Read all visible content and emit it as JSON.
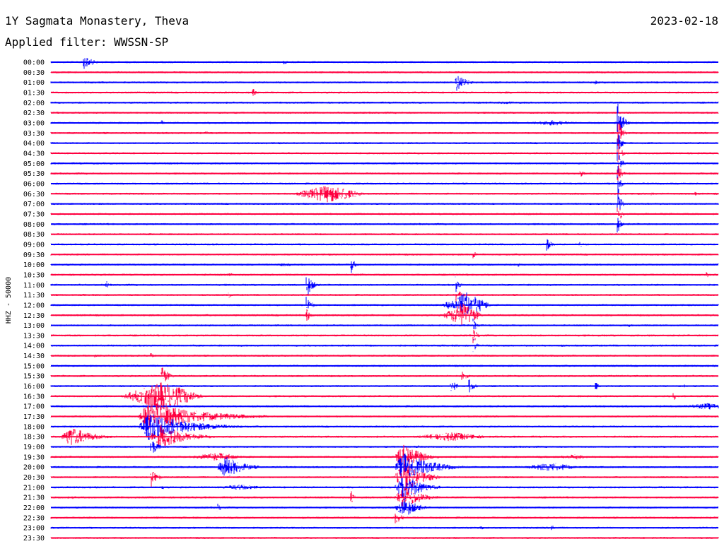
{
  "header": {
    "station_title": "1Y Sagmata Monastery, Theva",
    "date": "2023-02-18",
    "filter_label": "Applied filter: WWSSN-SP"
  },
  "chart_data": {
    "type": "line",
    "ylabel": "HHZ - 50000",
    "colors": [
      "#0000ff",
      "#ff0040"
    ],
    "rows": [
      "00:00",
      "00:30",
      "01:00",
      "01:30",
      "02:00",
      "02:30",
      "03:00",
      "03:30",
      "04:00",
      "04:30",
      "05:00",
      "05:30",
      "06:00",
      "06:30",
      "07:00",
      "07:30",
      "08:00",
      "08:30",
      "09:00",
      "09:30",
      "10:00",
      "10:30",
      "11:00",
      "11:30",
      "12:00",
      "12:30",
      "13:00",
      "13:30",
      "14:00",
      "14:30",
      "15:00",
      "15:30",
      "16:00",
      "16:30",
      "17:00",
      "17:30",
      "18:00",
      "18:30",
      "19:00",
      "19:30",
      "20:00",
      "20:30",
      "21:00",
      "21:30",
      "22:00",
      "22:30",
      "23:00",
      "23:30"
    ],
    "row_minutes": 30,
    "events": [
      {
        "row": 0,
        "minute": 1.5,
        "amp": 1.2,
        "dur": 1.5,
        "type": "spike"
      },
      {
        "row": 0,
        "minute": 10.5,
        "amp": 0.4,
        "dur": 0.8,
        "type": "spike"
      },
      {
        "row": 0,
        "minute": 15,
        "amp": 0.25,
        "dur": 0.5,
        "type": "spike"
      },
      {
        "row": 1,
        "minute": 8,
        "amp": 0.15,
        "dur": 2,
        "type": "burst"
      },
      {
        "row": 1,
        "minute": 11,
        "amp": 0.2,
        "dur": 1.5,
        "type": "burst"
      },
      {
        "row": 2,
        "minute": 18.2,
        "amp": 1.8,
        "dur": 1.5,
        "type": "spike"
      },
      {
        "row": 2,
        "minute": 24.5,
        "amp": 0.5,
        "dur": 0.8,
        "type": "spike"
      },
      {
        "row": 2,
        "minute": 7.6,
        "amp": 0.2,
        "dur": 0.6,
        "type": "spike"
      },
      {
        "row": 3,
        "minute": 9.1,
        "amp": 0.7,
        "dur": 0.5,
        "type": "spike"
      },
      {
        "row": 3,
        "minute": 20.5,
        "amp": 0.2,
        "dur": 3,
        "type": "burst"
      },
      {
        "row": 4,
        "minute": 20.5,
        "amp": 0.25,
        "dur": 3,
        "type": "burst"
      },
      {
        "row": 4,
        "minute": 17,
        "amp": 0.1,
        "dur": 4,
        "type": "burst"
      },
      {
        "row": 6,
        "minute": 5,
        "amp": 0.5,
        "dur": 0.7,
        "type": "spike"
      },
      {
        "row": 6,
        "minute": 22.5,
        "amp": 0.5,
        "dur": 1.5,
        "type": "burst"
      },
      {
        "row": 6,
        "minute": 25.5,
        "amp": 3.5,
        "dur": 0.8,
        "type": "spike"
      },
      {
        "row": 7,
        "minute": 7,
        "amp": 0.35,
        "dur": 0.4,
        "type": "spike"
      },
      {
        "row": 7,
        "minute": 25.5,
        "amp": 3,
        "dur": 0.6,
        "type": "spike"
      },
      {
        "row": 8,
        "minute": 25.5,
        "amp": 2.8,
        "dur": 0.5,
        "type": "spike"
      },
      {
        "row": 9,
        "minute": 25.5,
        "amp": 2.6,
        "dur": 0.5,
        "type": "spike"
      },
      {
        "row": 9,
        "minute": 23.5,
        "amp": 0.2,
        "dur": 2,
        "type": "burst"
      },
      {
        "row": 10,
        "minute": 25.5,
        "amp": 2.6,
        "dur": 0.5,
        "type": "spike"
      },
      {
        "row": 11,
        "minute": 25.5,
        "amp": 2.6,
        "dur": 0.5,
        "type": "spike"
      },
      {
        "row": 11,
        "minute": 23.8,
        "amp": 0.8,
        "dur": 0.6,
        "type": "spike"
      },
      {
        "row": 12,
        "minute": 25.5,
        "amp": 2.6,
        "dur": 0.5,
        "type": "spike"
      },
      {
        "row": 13,
        "minute": 12.5,
        "amp": 1.6,
        "dur": 1.8,
        "type": "burst"
      },
      {
        "row": 13,
        "minute": 27,
        "amp": 0.4,
        "dur": 0.5,
        "type": "spike"
      },
      {
        "row": 13,
        "minute": 29,
        "amp": 0.35,
        "dur": 0.4,
        "type": "spike"
      },
      {
        "row": 14,
        "minute": 25.5,
        "amp": 2.6,
        "dur": 0.5,
        "type": "spike"
      },
      {
        "row": 15,
        "minute": 25.5,
        "amp": 2.2,
        "dur": 0.5,
        "type": "spike"
      },
      {
        "row": 16,
        "minute": 25.5,
        "amp": 1.5,
        "dur": 0.5,
        "type": "spike"
      },
      {
        "row": 18,
        "minute": 22.3,
        "amp": 1.2,
        "dur": 0.8,
        "type": "spike"
      },
      {
        "row": 18,
        "minute": 23.8,
        "amp": 0.7,
        "dur": 0.6,
        "type": "spike"
      },
      {
        "row": 19,
        "minute": 19,
        "amp": 0.8,
        "dur": 0.5,
        "type": "spike"
      },
      {
        "row": 20,
        "minute": 10.5,
        "amp": 0.3,
        "dur": 1,
        "type": "burst"
      },
      {
        "row": 20,
        "minute": 13.5,
        "amp": 1.5,
        "dur": 0.6,
        "type": "spike"
      },
      {
        "row": 20,
        "minute": 21,
        "amp": 0.4,
        "dur": 0.6,
        "type": "spike"
      },
      {
        "row": 21,
        "minute": 8,
        "amp": 0.6,
        "dur": 0.6,
        "type": "spike"
      },
      {
        "row": 21,
        "minute": 14,
        "amp": 0.2,
        "dur": 3,
        "type": "burst"
      },
      {
        "row": 21,
        "minute": 29.5,
        "amp": 0.6,
        "dur": 0.5,
        "type": "spike"
      },
      {
        "row": 22,
        "minute": 2.5,
        "amp": 0.7,
        "dur": 0.5,
        "type": "spike"
      },
      {
        "row": 22,
        "minute": 11.5,
        "amp": 2.4,
        "dur": 0.9,
        "type": "spike"
      },
      {
        "row": 22,
        "minute": 18.2,
        "amp": 1.5,
        "dur": 0.6,
        "type": "spike"
      },
      {
        "row": 23,
        "minute": 1.5,
        "amp": 0.2,
        "dur": 1.5,
        "type": "burst"
      },
      {
        "row": 23,
        "minute": 8,
        "amp": 0.6,
        "dur": 0.5,
        "type": "spike"
      },
      {
        "row": 23,
        "minute": 18.2,
        "amp": 1.8,
        "dur": 0.7,
        "type": "spike"
      },
      {
        "row": 24,
        "minute": 11.5,
        "amp": 1.6,
        "dur": 0.8,
        "type": "spike"
      },
      {
        "row": 24,
        "minute": 18.7,
        "amp": 2.3,
        "dur": 1.2,
        "type": "burst"
      },
      {
        "row": 25,
        "minute": 11.5,
        "amp": 1.4,
        "dur": 0.6,
        "type": "spike"
      },
      {
        "row": 25,
        "minute": 18.5,
        "amp": 2.2,
        "dur": 1,
        "type": "burst"
      },
      {
        "row": 26,
        "minute": 19,
        "amp": 1.6,
        "dur": 0.6,
        "type": "spike"
      },
      {
        "row": 26,
        "minute": 26,
        "amp": 0.3,
        "dur": 0.5,
        "type": "spike"
      },
      {
        "row": 27,
        "minute": 19,
        "amp": 1.4,
        "dur": 0.6,
        "type": "spike"
      },
      {
        "row": 28,
        "minute": 19,
        "amp": 1.2,
        "dur": 0.6,
        "type": "spike"
      },
      {
        "row": 28,
        "minute": 23,
        "amp": 0.2,
        "dur": 1,
        "type": "burst"
      },
      {
        "row": 29,
        "minute": 2,
        "amp": 0.3,
        "dur": 0.5,
        "type": "spike"
      },
      {
        "row": 29,
        "minute": 4.5,
        "amp": 0.5,
        "dur": 0.6,
        "type": "spike"
      },
      {
        "row": 31,
        "minute": 5,
        "amp": 2.0,
        "dur": 1,
        "type": "spike"
      },
      {
        "row": 31,
        "minute": 18.5,
        "amp": 1.6,
        "dur": 0.6,
        "type": "spike"
      },
      {
        "row": 32,
        "minute": 18,
        "amp": 1.2,
        "dur": 1,
        "type": "spike"
      },
      {
        "row": 32,
        "minute": 18.8,
        "amp": 1.4,
        "dur": 0.8,
        "type": "spike"
      },
      {
        "row": 32,
        "minute": 24.5,
        "amp": 0.8,
        "dur": 0.6,
        "type": "spike"
      },
      {
        "row": 32,
        "minute": 28.5,
        "amp": 0.3,
        "dur": 0.4,
        "type": "spike"
      },
      {
        "row": 33,
        "minute": 5,
        "amp": 2.5,
        "dur": 2,
        "type": "burst"
      },
      {
        "row": 33,
        "minute": 28,
        "amp": 0.8,
        "dur": 0.6,
        "type": "spike"
      },
      {
        "row": 34,
        "minute": 29.5,
        "amp": 0.6,
        "dur": 1.5,
        "type": "burst"
      },
      {
        "row": 34,
        "minute": 28,
        "amp": 0.2,
        "dur": 0.5,
        "type": "spike"
      },
      {
        "row": 35,
        "minute": 4,
        "amp": 2.8,
        "dur": 6,
        "type": "quake"
      },
      {
        "row": 36,
        "minute": 4,
        "amp": 2.5,
        "dur": 5,
        "type": "quake"
      },
      {
        "row": 37,
        "minute": 0.5,
        "amp": 1.8,
        "dur": 2.5,
        "type": "quake"
      },
      {
        "row": 37,
        "minute": 4.5,
        "amp": 2.2,
        "dur": 3,
        "type": "quake"
      },
      {
        "row": 37,
        "minute": 18,
        "amp": 0.8,
        "dur": 2,
        "type": "burst"
      },
      {
        "row": 38,
        "minute": 16.5,
        "amp": 0.3,
        "dur": 0.6,
        "type": "spike"
      },
      {
        "row": 38,
        "minute": 4.5,
        "amp": 1.8,
        "dur": 1,
        "type": "spike"
      },
      {
        "row": 39,
        "minute": 7.5,
        "amp": 0.8,
        "dur": 1.5,
        "type": "burst"
      },
      {
        "row": 39,
        "minute": 23.5,
        "amp": 0.5,
        "dur": 1,
        "type": "burst"
      },
      {
        "row": 39,
        "minute": 15.5,
        "amp": 2.5,
        "dur": 2,
        "type": "quake"
      },
      {
        "row": 40,
        "minute": 7.5,
        "amp": 2,
        "dur": 2,
        "type": "quake"
      },
      {
        "row": 40,
        "minute": 15.5,
        "amp": 3,
        "dur": 3,
        "type": "quake"
      },
      {
        "row": 40,
        "minute": 22.5,
        "amp": 0.8,
        "dur": 1.5,
        "type": "burst"
      },
      {
        "row": 41,
        "minute": 4.5,
        "amp": 1.8,
        "dur": 1,
        "type": "spike"
      },
      {
        "row": 41,
        "minute": 15.5,
        "amp": 3,
        "dur": 2,
        "type": "quake"
      },
      {
        "row": 42,
        "minute": 5,
        "amp": 0.5,
        "dur": 0.4,
        "type": "spike"
      },
      {
        "row": 42,
        "minute": 8.5,
        "amp": 0.5,
        "dur": 1.5,
        "type": "burst"
      },
      {
        "row": 42,
        "minute": 15.5,
        "amp": 2.5,
        "dur": 2,
        "type": "quake"
      },
      {
        "row": 43,
        "minute": 1,
        "amp": 0.3,
        "dur": 0.5,
        "type": "spike"
      },
      {
        "row": 43,
        "minute": 13.5,
        "amp": 1.2,
        "dur": 0.5,
        "type": "spike"
      },
      {
        "row": 43,
        "minute": 15.5,
        "amp": 2,
        "dur": 2,
        "type": "quake"
      },
      {
        "row": 43,
        "minute": 26,
        "amp": 0.2,
        "dur": 0.4,
        "type": "spike"
      },
      {
        "row": 44,
        "minute": 7.5,
        "amp": 0.7,
        "dur": 0.8,
        "type": "spike"
      },
      {
        "row": 44,
        "minute": 15.5,
        "amp": 1.8,
        "dur": 1.5,
        "type": "quake"
      },
      {
        "row": 45,
        "minute": 15.5,
        "amp": 1.2,
        "dur": 1,
        "type": "spike"
      },
      {
        "row": 46,
        "minute": 19.3,
        "amp": 0.6,
        "dur": 0.5,
        "type": "spike"
      },
      {
        "row": 46,
        "minute": 22.5,
        "amp": 0.8,
        "dur": 0.6,
        "type": "spike"
      },
      {
        "row": 46,
        "minute": 25.5,
        "amp": 0.2,
        "dur": 0.4,
        "type": "spike"
      },
      {
        "row": 47,
        "minute": 10,
        "amp": 0.2,
        "dur": 3,
        "type": "burst"
      }
    ]
  }
}
